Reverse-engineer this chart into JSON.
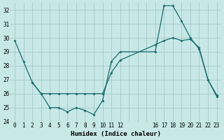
{
  "xlabel": "Humidex (Indice chaleur)",
  "background_color": "#c8e8e8",
  "grid_color": "#aacccc",
  "line_color": "#1a6b6b",
  "ylim": [
    24,
    32.5
  ],
  "xlim": [
    -0.5,
    23.5
  ],
  "yticks": [
    24,
    25,
    26,
    27,
    28,
    29,
    30,
    31,
    32
  ],
  "xtick_positions": [
    0,
    1,
    2,
    3,
    4,
    5,
    6,
    7,
    8,
    9,
    10,
    11,
    12,
    13,
    14,
    15,
    16,
    17,
    18,
    19,
    20,
    21,
    22,
    23
  ],
  "xtick_labels": [
    "0",
    "1",
    "2",
    "3",
    "4",
    "5",
    "6",
    "7",
    "8",
    "9",
    "10",
    "11",
    "12",
    "",
    "",
    "",
    "16",
    "17",
    "18",
    "19",
    "20",
    "21",
    "22",
    "23"
  ],
  "line1_x": [
    0,
    1,
    2,
    3,
    4,
    5,
    6,
    7,
    8,
    9,
    10,
    11,
    12,
    16,
    17,
    18,
    19,
    20,
    21,
    22,
    23
  ],
  "line1_y": [
    29.8,
    28.3,
    26.8,
    26.0,
    25.0,
    25.0,
    24.7,
    25.0,
    24.8,
    24.5,
    25.5,
    28.3,
    29.0,
    29.0,
    32.3,
    32.3,
    31.2,
    30.0,
    29.2,
    27.0,
    25.8
  ],
  "line2_x": [
    2,
    3,
    4,
    5,
    6,
    7,
    8,
    9,
    10,
    11,
    12,
    16,
    17,
    18,
    19,
    20,
    21,
    22,
    23
  ],
  "line2_y": [
    26.8,
    26.0,
    26.0,
    26.0,
    26.0,
    26.0,
    26.0,
    26.0,
    26.0,
    27.5,
    28.4,
    29.5,
    29.8,
    30.0,
    29.8,
    29.9,
    29.3,
    27.0,
    25.9
  ]
}
